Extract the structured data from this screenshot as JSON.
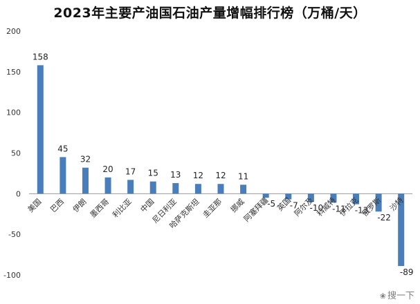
{
  "chart_data": {
    "type": "bar",
    "title": "2023年主要产油国石油产量增幅排行榜（万桶/天）",
    "categories": [
      "美国",
      "巴西",
      "伊朗",
      "墨西哥",
      "利比亚",
      "中国",
      "尼日利亚",
      "哈萨克斯坦",
      "圭亚那",
      "挪威",
      "阿塞拜疆",
      "英国",
      "阿尔及",
      "科威特",
      "伊拉克",
      "俄罗斯",
      "沙特"
    ],
    "values": [
      158,
      45,
      32,
      20,
      17,
      15,
      13,
      12,
      12,
      11,
      -5,
      -7,
      -10,
      -11,
      -13,
      -22,
      -89
    ],
    "data_labels": [
      "158",
      "45",
      "32",
      "20",
      "17",
      "15",
      "13",
      "12",
      "12",
      "11",
      "-5",
      "-7",
      "-10",
      "-11",
      "-13",
      "-22",
      "-89"
    ],
    "ylim": [
      -100,
      200
    ],
    "yticks": [
      -100,
      -50,
      0,
      50,
      100,
      150,
      200
    ],
    "ytick_labels": [
      "-100",
      "-50",
      "0",
      "50",
      "100",
      "150",
      "200"
    ],
    "grid": false,
    "legend": "none",
    "bar_color": "#4a7ebb",
    "axis_color": "#999999"
  },
  "watermark": {
    "text": "搜一下",
    "icon": "paw-icon"
  }
}
